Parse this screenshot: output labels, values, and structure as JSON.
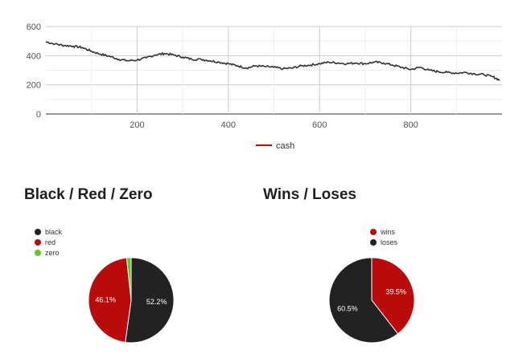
{
  "chart_data": [
    {
      "type": "line",
      "title": "",
      "xlabel": "",
      "ylabel": "",
      "x_range": [
        0,
        1000
      ],
      "ylim": [
        0,
        600
      ],
      "x_ticks": [
        200,
        400,
        600,
        800
      ],
      "y_ticks": [
        0,
        200,
        400,
        600
      ],
      "grid": true,
      "legend_position": "bottom",
      "series": [
        {
          "name": "cash",
          "color": "#cc0000",
          "line_color": "#333333",
          "x": [
            0,
            20,
            40,
            60,
            80,
            100,
            120,
            140,
            160,
            180,
            200,
            220,
            240,
            260,
            280,
            300,
            320,
            340,
            360,
            380,
            400,
            420,
            440,
            460,
            480,
            500,
            520,
            540,
            560,
            580,
            600,
            620,
            640,
            660,
            680,
            700,
            720,
            740,
            760,
            780,
            800,
            820,
            840,
            860,
            880,
            900,
            920,
            940,
            960,
            980,
            995
          ],
          "values": [
            495,
            480,
            470,
            465,
            455,
            430,
            410,
            395,
            375,
            365,
            370,
            385,
            405,
            415,
            405,
            390,
            375,
            375,
            365,
            355,
            345,
            330,
            315,
            330,
            325,
            320,
            310,
            315,
            330,
            335,
            345,
            355,
            350,
            345,
            350,
            345,
            355,
            350,
            335,
            320,
            305,
            320,
            300,
            290,
            285,
            280,
            285,
            275,
            270,
            255,
            232
          ]
        }
      ]
    },
    {
      "type": "pie",
      "title": "Black / Red / Zero",
      "legend_position": "top-left",
      "slices": [
        {
          "label": "black",
          "value": 52.2,
          "color": "#222222",
          "display": "52.2%"
        },
        {
          "label": "red",
          "value": 46.1,
          "color": "#b90b0b",
          "display": "46.1%"
        },
        {
          "label": "zero",
          "value": 1.7,
          "color": "#5fca2a",
          "display": ""
        }
      ]
    },
    {
      "type": "pie",
      "title": "Wins / Loses",
      "legend_position": "top-right",
      "slices": [
        {
          "label": "wins",
          "value": 39.5,
          "color": "#b90b0b",
          "display": "39.5%"
        },
        {
          "label": "loses",
          "value": 60.5,
          "color": "#222222",
          "display": "60.5%"
        }
      ]
    }
  ]
}
